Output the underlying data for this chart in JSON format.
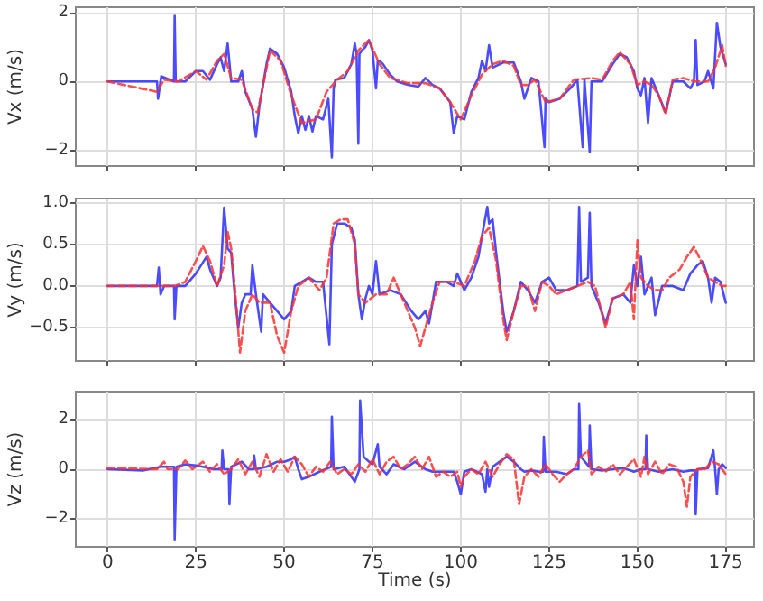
{
  "chart_data": [
    {
      "type": "line",
      "ylabel": "Vx (m/s)",
      "xlim": [
        -9,
        183
      ],
      "xticks": [
        0,
        25,
        50,
        75,
        100,
        125,
        150,
        175
      ],
      "ylim": [
        -2.45,
        2.15
      ],
      "yticks": [
        {
          "value": -2,
          "label": "−2"
        },
        0,
        2
      ],
      "grid": true,
      "tick_labels": "y",
      "series": [
        {
          "color": "#2b2bff",
          "line_style": "solid",
          "x": [
            0,
            14,
            14.3,
            15.2,
            18.8,
            19,
            19.3,
            22,
            25,
            27,
            29,
            31,
            32,
            33,
            34,
            35,
            37,
            38,
            39,
            41,
            42,
            43,
            45,
            46,
            48,
            50,
            52,
            53,
            54,
            55,
            56,
            57,
            58,
            59,
            61,
            62.5,
            63.5,
            64,
            64.5,
            67,
            69,
            70,
            70.5,
            71,
            71.3,
            72,
            73,
            74,
            75,
            76,
            76.5,
            77,
            78,
            80,
            82,
            85,
            88,
            90,
            92,
            94,
            97,
            98,
            99,
            101,
            103,
            105,
            106,
            107,
            108,
            109,
            112,
            115,
            117,
            118,
            120,
            122,
            123.7,
            124,
            125,
            128,
            131,
            133,
            134.5,
            135,
            136.5,
            137,
            140,
            143,
            145,
            147,
            149,
            150,
            151,
            152,
            153,
            154,
            156,
            158,
            160,
            163,
            165,
            166,
            166.5,
            167,
            169,
            170,
            171.5,
            172.5,
            173.5,
            175
          ],
          "values": [
            0,
            0,
            -0.5,
            0.15,
            0,
            1.9,
            0,
            0,
            0.3,
            0.3,
            0.05,
            0.5,
            0.7,
            0.3,
            1.1,
            0,
            0,
            0.3,
            -0.3,
            -0.8,
            -1.6,
            -0.7,
            0.5,
            0.95,
            0.8,
            0.4,
            -0.3,
            -1,
            -1.5,
            -1,
            -1.4,
            -1,
            -1.45,
            -1,
            -1.1,
            -0.5,
            -2.2,
            -0.2,
            0.05,
            0.1,
            0.5,
            1.1,
            0.8,
            -1.8,
            0.8,
            0.9,
            1,
            1.2,
            0.9,
            -0.2,
            0.6,
            0.6,
            0.5,
            0.2,
            0,
            -0.1,
            -0.15,
            0.1,
            -0.1,
            -0.2,
            -0.6,
            -1.5,
            -1,
            -1.1,
            -0.3,
            0.1,
            0.6,
            0.3,
            1.05,
            0.4,
            0.55,
            0.55,
            0,
            -0.5,
            0.1,
            0,
            -1.9,
            -0.5,
            -0.6,
            -0.5,
            -0.2,
            0.05,
            -1.9,
            0.05,
            -2.05,
            0,
            0,
            0.5,
            0.8,
            0.7,
            0.3,
            -0.2,
            -0.4,
            0.1,
            -1.2,
            0.1,
            -0.4,
            -0.9,
            0,
            0,
            -0.2,
            0,
            1.2,
            -0.1,
            0,
            0.3,
            -0.2,
            1.7,
            1,
            0.5
          ]
        },
        {
          "color": "#ff3030",
          "line_style": "dashed",
          "x": [
            0,
            14,
            16,
            20,
            25,
            28,
            31,
            33,
            35,
            38,
            41,
            42.5,
            46,
            49,
            52,
            55,
            59,
            62,
            65,
            68,
            71,
            74,
            77,
            80,
            85,
            90,
            94,
            97,
            100,
            103,
            106,
            109,
            112,
            115,
            117,
            119,
            121,
            124,
            128,
            132,
            137,
            140,
            143,
            145,
            148,
            150,
            152,
            154,
            156,
            158,
            160,
            163,
            166,
            170,
            172,
            174,
            175
          ],
          "values": [
            0,
            -0.3,
            0.05,
            0,
            0.3,
            0.05,
            0.6,
            0.8,
            0.1,
            0.05,
            -0.8,
            -0.9,
            0.9,
            0.6,
            -0.4,
            -1.2,
            -1.1,
            -0.3,
            0.05,
            0.3,
            0.9,
            1.2,
            0.5,
            0.1,
            -0.05,
            -0.05,
            -0.2,
            -0.6,
            -1.1,
            -0.4,
            0.2,
            0.5,
            0.6,
            0.45,
            -0.1,
            -0.1,
            0.05,
            -0.6,
            -0.5,
            0.05,
            0.1,
            0.05,
            0.6,
            0.85,
            0.5,
            -0.1,
            0,
            -0.1,
            -0.4,
            -0.95,
            0.05,
            0.1,
            0,
            0,
            0.4,
            1.05,
            0.45
          ]
        }
      ]
    },
    {
      "type": "line",
      "ylabel": "Vy (m/s)",
      "xlim": [
        -9,
        183
      ],
      "xticks": [
        0,
        25,
        50,
        75,
        100,
        125,
        150,
        175
      ],
      "ylim": [
        -0.9,
        1.05
      ],
      "yticks": [
        {
          "value": -0.5,
          "label": "−0.5"
        },
        {
          "value": 0,
          "label": "0.0"
        },
        0.5,
        {
          "value": 1,
          "label": "1.0"
        }
      ],
      "grid": true,
      "tick_labels": "y",
      "series": [
        {
          "color": "#2b2bff",
          "line_style": "solid",
          "x": [
            0,
            14,
            14.5,
            15,
            16,
            18.8,
            19,
            19.5,
            22,
            25,
            28,
            29,
            31,
            32,
            33,
            34,
            35,
            36,
            37,
            38,
            39,
            40.5,
            41,
            42,
            43.5,
            44,
            46,
            48,
            50,
            52,
            53,
            55,
            57,
            59,
            61,
            62.8,
            63.5,
            65,
            67,
            69,
            70,
            71,
            72,
            73,
            74,
            75,
            76,
            77,
            80,
            83,
            86,
            88,
            90,
            91,
            93,
            96,
            98,
            99,
            101,
            103,
            105,
            106,
            107.5,
            108,
            109,
            110,
            112,
            113,
            115,
            117,
            119,
            121,
            123,
            125,
            127,
            130,
            133,
            133.5,
            134,
            136,
            136.5,
            137,
            139,
            141,
            143,
            146,
            148,
            149,
            150,
            151,
            152,
            154,
            155,
            157,
            160,
            163,
            165,
            167,
            168.5,
            170,
            171,
            172,
            173.5,
            175
          ],
          "values": [
            0,
            0,
            0.22,
            -0.1,
            0,
            0,
            -0.4,
            0,
            0,
            0.15,
            0.35,
            0.2,
            0,
            0.1,
            0.94,
            0.45,
            0.4,
            -0.1,
            -0.5,
            -0.2,
            -0.1,
            -0.1,
            0.25,
            -0.1,
            -0.55,
            -0.1,
            -0.2,
            -0.3,
            -0.4,
            -0.3,
            0,
            0.05,
            0.1,
            0.05,
            0.05,
            -0.7,
            0.5,
            0.75,
            0.75,
            0.7,
            0.55,
            -0.1,
            -0.4,
            -0.15,
            0,
            -0.1,
            0.3,
            -0.1,
            -0.05,
            -0.1,
            -0.3,
            -0.4,
            -0.3,
            -0.45,
            0.05,
            0.05,
            0,
            0.15,
            -0.05,
            0.1,
            0.35,
            0.6,
            0.95,
            0.75,
            0.8,
            0.4,
            -0.3,
            -0.55,
            -0.3,
            0.05,
            -0.05,
            -0.2,
            0.05,
            0.1,
            -0.05,
            -0.05,
            0,
            0.95,
            0.05,
            0.1,
            0.88,
            0,
            -0.2,
            -0.45,
            -0.15,
            -0.1,
            -0.2,
            0.25,
            0,
            0.35,
            -0.1,
            0.1,
            -0.35,
            0,
            0,
            -0.05,
            0.15,
            0.25,
            0.3,
            0.1,
            -0.2,
            0.1,
            0.05,
            -0.2
          ]
        },
        {
          "color": "#ff3030",
          "line_style": "dashed",
          "x": [
            0,
            14,
            16,
            19,
            22,
            25,
            27,
            29,
            31,
            33,
            34,
            35,
            36,
            37.5,
            39,
            41,
            43,
            46,
            48,
            50,
            52,
            54,
            57,
            60,
            62,
            64,
            66,
            68,
            70,
            71,
            73,
            76,
            79,
            81,
            84,
            87,
            88.5,
            90,
            92,
            94,
            98,
            101,
            104,
            106,
            108,
            110,
            112,
            113,
            115,
            117,
            119,
            121,
            123,
            125,
            127,
            130,
            133,
            136,
            138,
            141,
            143,
            146,
            148,
            149,
            150,
            151,
            153,
            155,
            157,
            159,
            162,
            164,
            166,
            168,
            170,
            172,
            174,
            175
          ],
          "values": [
            0,
            0,
            0,
            0,
            0.05,
            0.3,
            0.48,
            0.3,
            0,
            0.25,
            0.65,
            0.45,
            0,
            -0.8,
            -0.3,
            -0.1,
            -0.2,
            -0.2,
            -0.6,
            -0.8,
            -0.3,
            0,
            0.1,
            -0.05,
            0.1,
            0.75,
            0.8,
            0.8,
            0.5,
            -0.1,
            -0.2,
            -0.1,
            -0.1,
            0.1,
            -0.2,
            -0.5,
            -0.72,
            -0.5,
            -0.2,
            0.05,
            0.05,
            0,
            0.3,
            0.6,
            0.7,
            0.3,
            -0.4,
            -0.65,
            -0.3,
            0,
            0,
            -0.3,
            0.05,
            0,
            -0.1,
            -0.05,
            0,
            0.05,
            0,
            -0.5,
            -0.15,
            -0.1,
            0.05,
            -0.4,
            0.55,
            0.1,
            0,
            -0.05,
            -0.05,
            0.1,
            0.2,
            0.35,
            0.47,
            0.3,
            0.1,
            0.05,
            0,
            0
          ]
        }
      ]
    },
    {
      "type": "line",
      "xlabel": "Time (s)",
      "ylabel": "Vz (m/s)",
      "xlim": [
        -9,
        183
      ],
      "xticks": [
        0,
        25,
        50,
        75,
        100,
        125,
        150,
        175
      ],
      "ylim": [
        -3.1,
        3.1
      ],
      "yticks": [
        {
          "value": -2,
          "label": "−2"
        },
        0,
        2
      ],
      "grid": true,
      "series": [
        {
          "color": "#2b2bff",
          "line_style": "solid",
          "x": [
            0,
            10,
            15,
            18.8,
            19,
            19.5,
            22,
            25,
            27,
            30,
            32.3,
            32.5,
            33,
            34.3,
            34.5,
            35,
            38,
            40,
            41.3,
            41.5,
            42,
            45,
            48,
            50,
            52,
            53,
            54,
            55,
            57,
            60,
            63.3,
            63.5,
            64,
            67,
            70,
            71.3,
            71.5,
            72.5,
            74,
            75,
            76.5,
            77,
            79,
            81,
            84,
            87,
            90,
            92,
            95,
            98,
            99,
            100,
            101,
            103,
            106,
            107,
            107.5,
            108,
            109,
            111,
            113,
            115,
            117,
            118,
            120,
            122,
            123.3,
            123.5,
            124,
            127,
            130,
            132,
            133.3,
            133.5,
            134,
            136.3,
            136.5,
            137,
            140,
            143,
            146,
            149,
            151,
            152.3,
            152.5,
            153,
            156,
            160,
            163,
            165,
            166.3,
            166.5,
            167,
            170,
            171.5,
            172,
            172.5,
            173,
            174,
            175
          ],
          "values": [
            0,
            -0.05,
            0.1,
            0.1,
            -2.8,
            0.1,
            0.2,
            0.15,
            0.1,
            0,
            0,
            0.75,
            0,
            0,
            -1.4,
            0.1,
            0.3,
            0,
            0,
            0.55,
            0,
            0.1,
            0.3,
            0.3,
            0.4,
            0.5,
            0,
            -0.4,
            -0.3,
            -0.1,
            0.1,
            2.1,
            0,
            0.1,
            -0.5,
            0,
            2.75,
            0.5,
            0.3,
            0.2,
            1,
            0.1,
            -0.2,
            0.2,
            0,
            0.3,
            0,
            -0.1,
            -0.1,
            -0.1,
            -0.5,
            -1,
            -0.1,
            0,
            -0.2,
            -0.9,
            0,
            -0.7,
            0.1,
            0.3,
            0.5,
            0.3,
            0,
            -0.1,
            -0.05,
            -0.1,
            -0.1,
            1.3,
            -0.1,
            -0.1,
            -0.2,
            0,
            0,
            2.6,
            0.5,
            0.1,
            1.75,
            0,
            -0.05,
            0,
            0.05,
            -0.1,
            0,
            0,
            1.35,
            0,
            -0.1,
            0,
            -0.1,
            -0.05,
            -0.05,
            -1.8,
            0,
            0.05,
            0.75,
            0,
            -1,
            0,
            0.2,
            0.05
          ]
        },
        {
          "color": "#ff3030",
          "line_style": "dashed",
          "x": [
            0,
            14,
            16,
            17,
            20,
            22,
            24,
            27,
            29,
            31,
            33,
            35,
            37,
            39,
            41,
            43,
            45,
            47,
            49,
            51,
            53,
            55,
            57,
            59,
            61,
            63,
            65,
            67,
            69,
            71,
            73,
            75,
            77,
            79,
            81,
            83,
            85,
            87,
            89,
            91,
            93,
            95,
            97,
            99,
            100,
            101,
            103,
            105,
            107,
            109,
            111,
            113,
            115,
            116.5,
            118,
            120,
            122,
            124,
            126,
            128,
            130,
            132,
            134,
            136,
            137,
            139,
            141,
            143,
            145,
            147,
            149,
            151,
            152,
            153,
            155,
            157,
            159,
            161,
            163,
            164,
            165,
            167,
            169,
            171,
            173,
            175
          ],
          "values": [
            0.05,
            0,
            0.3,
            0,
            0,
            0.35,
            0,
            0.3,
            -0.1,
            0.2,
            -0.2,
            0,
            0.4,
            -0.2,
            0.3,
            -0.3,
            0.6,
            -0.1,
            0.4,
            -0.1,
            0.5,
            0.2,
            -0.3,
            0.1,
            -0.1,
            0.3,
            -0.2,
            0,
            -0.2,
            0.2,
            -0.1,
            0.4,
            -0.2,
            0.3,
            0.5,
            0,
            0.2,
            0.5,
            0,
            0.5,
            -0.3,
            -0.1,
            -0.3,
            -0.1,
            -0.7,
            -0.3,
            0,
            -0.2,
            0.3,
            -0.3,
            0.2,
            0.6,
            0.4,
            -1.4,
            -0.3,
            0,
            -0.3,
            0.2,
            -0.2,
            -0.5,
            -0.2,
            0,
            0.5,
            0.75,
            -0.2,
            0.1,
            -0.1,
            0.2,
            -0.2,
            0.1,
            0.4,
            -0.3,
            0.5,
            -0.2,
            0.3,
            -0.2,
            0.2,
            0.1,
            -0.5,
            -1.5,
            -0.3,
            0,
            0,
            0.3,
            0.2,
            -0.2
          ]
        }
      ]
    }
  ]
}
